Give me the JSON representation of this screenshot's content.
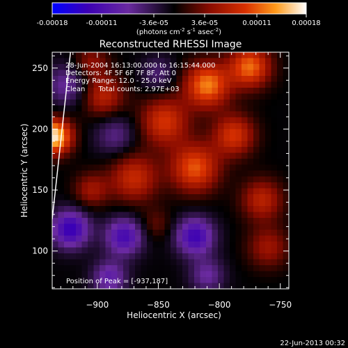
{
  "footer_date": "22-Jun-2013 00:32",
  "colorbar": {
    "tick_labels": [
      "-0.00018",
      "-0.00011",
      "-3.6e-05",
      "3.6e-05",
      "0.00011",
      "0.00018"
    ],
    "tick_values": [
      -0.00018,
      -0.00011,
      -3.6e-05,
      3.6e-05,
      0.00011,
      0.00018
    ],
    "range": [
      -0.00018,
      0.00018
    ],
    "units_label": "(photons cm",
    "units_sup1": "-2",
    "units_mid": " s",
    "units_sup2": "-1",
    "units_mid2": " asec",
    "units_sup3": "-2",
    "units_end": ")",
    "colors": [
      "#0000ff",
      "#3c00b4",
      "#6a2aa0",
      "#000000",
      "#8a0c00",
      "#d83000",
      "#ff9a1a",
      "#ffffff"
    ]
  },
  "chart_data": {
    "type": "heatmap",
    "title": "Reconstructed RHESSI Image",
    "xlabel": "Heliocentric X (arcsec)",
    "ylabel": "Heliocentric Y (arcsec)",
    "xlim": [
      -937,
      -743
    ],
    "ylim": [
      69,
      263
    ],
    "xticks": [
      -900,
      -850,
      -800,
      -750
    ],
    "yticks": [
      100,
      150,
      200,
      250
    ],
    "annotations": [
      "28-Jun-2004 16:13:00.000 to 16:15:44.000",
      "Detectors: 4F 5F 6F 7F 8F, Att 0",
      "Energy Range: 12.0 - 25.0 keV",
      "Clean      Total counts: 2.97E+03"
    ],
    "peak_label": "Position of Peak = [-937,187]",
    "peak": [
      -937,
      187
    ],
    "sources": [
      {
        "x": -935,
        "y": 194,
        "sigma": 10,
        "level": 1.0
      },
      {
        "x": -895,
        "y": 227,
        "sigma": 12,
        "level": 0.45
      },
      {
        "x": -845,
        "y": 206,
        "sigma": 14,
        "level": 0.55
      },
      {
        "x": -810,
        "y": 236,
        "sigma": 13,
        "level": 0.75
      },
      {
        "x": -775,
        "y": 251,
        "sigma": 12,
        "level": 0.7
      },
      {
        "x": -788,
        "y": 195,
        "sigma": 12,
        "level": 0.55
      },
      {
        "x": -820,
        "y": 168,
        "sigma": 14,
        "level": 0.65
      },
      {
        "x": -870,
        "y": 160,
        "sigma": 14,
        "level": 0.5
      },
      {
        "x": -905,
        "y": 150,
        "sigma": 10,
        "level": 0.35
      },
      {
        "x": -765,
        "y": 142,
        "sigma": 12,
        "level": 0.45
      },
      {
        "x": -760,
        "y": 103,
        "sigma": 12,
        "level": 0.35
      },
      {
        "x": -852,
        "y": 122,
        "sigma": 9,
        "level": 0.2
      },
      {
        "x": -905,
        "y": 255,
        "sigma": 10,
        "level": 0.3
      },
      {
        "x": -925,
        "y": 236,
        "sigma": 12,
        "level": -0.35
      },
      {
        "x": -885,
        "y": 195,
        "sigma": 12,
        "level": -0.3
      },
      {
        "x": -922,
        "y": 118,
        "sigma": 11,
        "level": -0.7
      },
      {
        "x": -878,
        "y": 112,
        "sigma": 11,
        "level": -0.6
      },
      {
        "x": -820,
        "y": 112,
        "sigma": 11,
        "level": -0.65
      },
      {
        "x": -890,
        "y": 78,
        "sigma": 10,
        "level": -0.45
      },
      {
        "x": -810,
        "y": 80,
        "sigma": 10,
        "level": -0.35
      },
      {
        "x": -850,
        "y": 245,
        "sigma": 10,
        "level": -0.25
      }
    ],
    "limb": [
      [
        -922,
        263
      ],
      [
        -937,
        126
      ]
    ]
  }
}
